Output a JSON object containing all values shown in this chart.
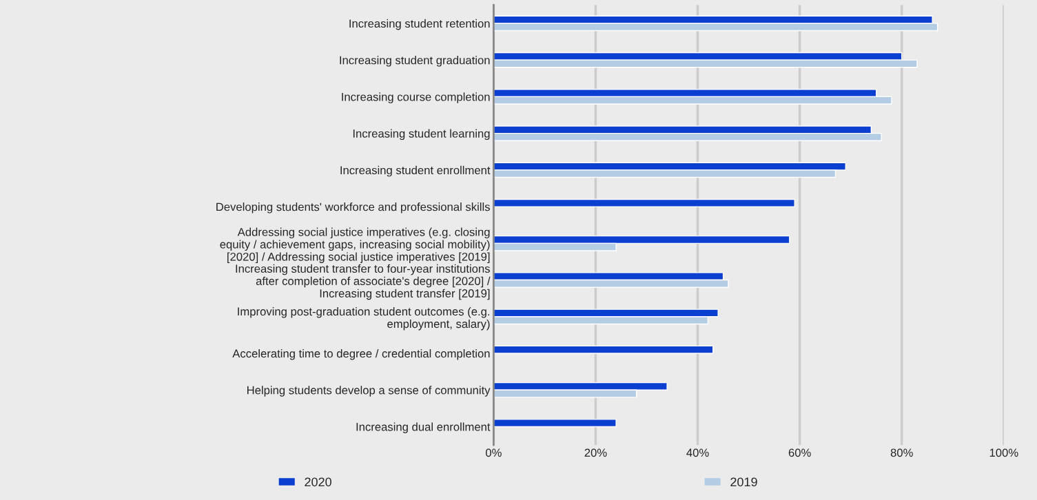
{
  "chart_data": {
    "type": "bar",
    "orientation": "horizontal",
    "categories": [
      "Increasing student retention",
      "Increasing student graduation",
      "Increasing course completion",
      "Increasing student learning",
      "Increasing student enrollment",
      "Developing students' workforce and professional skills",
      "Addressing social justice imperatives (e.g. closing\nequity / achievement gaps, increasing social mobility)\n[2020] / Addressing social justice imperatives [2019]",
      "Increasing student transfer to four-year institutions\nafter completion of associate's degree [2020] /\nIncreasing student transfer [2019]",
      "Improving post-graduation student outcomes (e.g.\nemployment, salary)",
      "Accelerating time to degree / credential completion",
      "Helping students develop a sense of community",
      "Increasing dual enrollment"
    ],
    "series": [
      {
        "name": "2020",
        "color": "#0b3fd0",
        "values": [
          86,
          80,
          75,
          74,
          69,
          59,
          58,
          45,
          44,
          43,
          34,
          24
        ]
      },
      {
        "name": "2019",
        "color": "#b4cce4",
        "values": [
          87,
          83,
          78,
          76,
          67,
          null,
          24,
          46,
          42,
          null,
          28,
          null
        ]
      }
    ],
    "xlim": [
      0,
      100
    ],
    "xticks": [
      {
        "value": 0,
        "label": "0%"
      },
      {
        "value": 20,
        "label": "20%"
      },
      {
        "value": 40,
        "label": "40%"
      },
      {
        "value": 60,
        "label": "60%"
      },
      {
        "value": 80,
        "label": "80%"
      },
      {
        "value": 100,
        "label": "100%"
      }
    ],
    "grid": "x",
    "legend": "bottom"
  }
}
